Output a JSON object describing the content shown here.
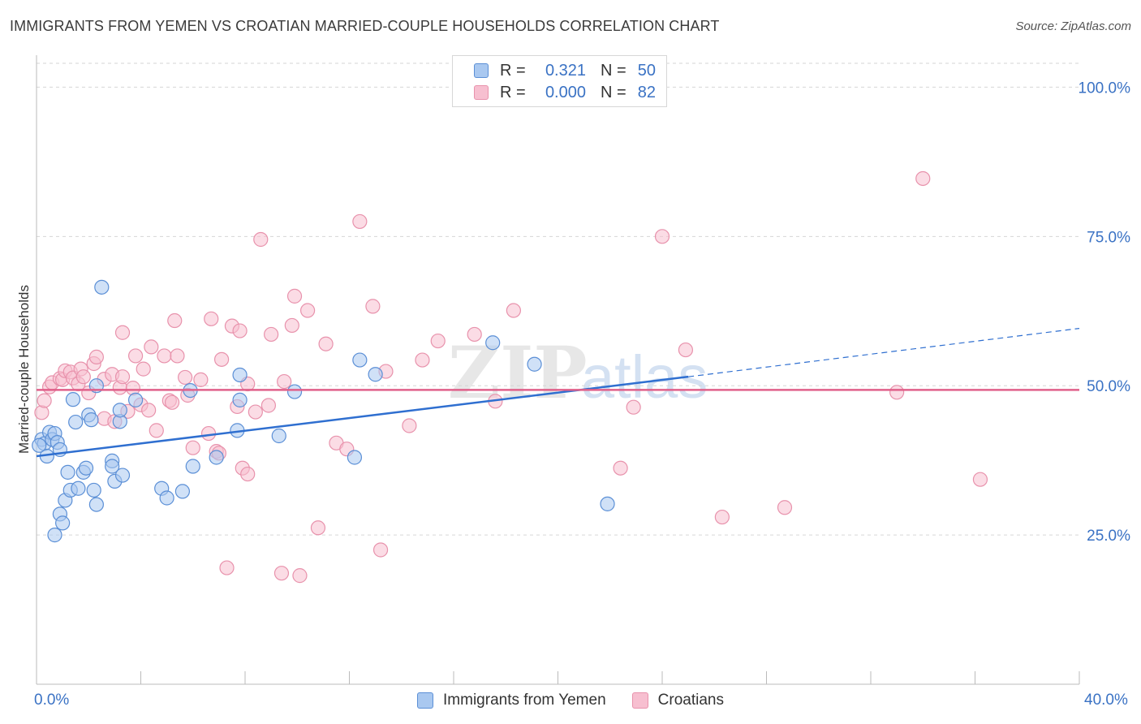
{
  "title": "IMMIGRANTS FROM YEMEN VS CROATIAN MARRIED-COUPLE HOUSEHOLDS CORRELATION CHART",
  "source": "Source: ZipAtlas.com",
  "watermark": {
    "bold": "ZIP",
    "light": "atlas"
  },
  "legend": {
    "rows": [
      {
        "r_label": "R =",
        "r_value": "0.321",
        "n_label": "N =",
        "n_value": "50"
      },
      {
        "r_label": "R =",
        "r_value": "0.000",
        "n_label": "N =",
        "n_value": "82"
      }
    ]
  },
  "colors": {
    "blue_fill": "#a9c8f0",
    "blue_stroke": "#5b8fd6",
    "blue_line": "#2f6fd0",
    "pink_fill": "#f7bfd0",
    "pink_stroke": "#e892ac",
    "pink_line": "#e0608a",
    "grid": "#d6d6d6",
    "tick_label": "#3a72c4"
  },
  "chart_data": {
    "type": "scatter",
    "title": "IMMIGRANTS FROM YEMEN VS CROATIAN MARRIED-COUPLE HOUSEHOLDS CORRELATION CHART",
    "xlabel": "",
    "ylabel": "Married-couple Households",
    "xlim": [
      0,
      40
    ],
    "ylim": [
      0,
      104
    ],
    "x_tick_labels": [
      "0.0%",
      "40.0%"
    ],
    "y_ticks": [
      25,
      50,
      75,
      100
    ],
    "y_tick_labels": [
      "25.0%",
      "50.0%",
      "75.0%",
      "100.0%"
    ],
    "grid": "horizontal dashed",
    "legend_placement": "bottom-center",
    "series": [
      {
        "name": "Immigrants from Yemen",
        "R": 0.321,
        "N": 50,
        "trend": {
          "x0": 0,
          "y0": 38.2,
          "x1": 25,
          "y1": 51.5,
          "dashed_to_x": 40,
          "dashed_y1": 59.6
        },
        "points": [
          [
            0.2,
            41.0
          ],
          [
            0.3,
            40.3
          ],
          [
            0.4,
            38.2
          ],
          [
            0.5,
            42.2
          ],
          [
            0.6,
            41.0
          ],
          [
            0.7,
            42.0
          ],
          [
            0.8,
            40.5
          ],
          [
            0.9,
            39.3
          ],
          [
            0.7,
            25.0
          ],
          [
            0.9,
            28.5
          ],
          [
            1.0,
            27.0
          ],
          [
            1.1,
            30.8
          ],
          [
            1.2,
            35.5
          ],
          [
            1.3,
            32.5
          ],
          [
            1.4,
            47.7
          ],
          [
            1.5,
            43.9
          ],
          [
            1.6,
            32.8
          ],
          [
            1.8,
            35.5
          ],
          [
            1.9,
            36.2
          ],
          [
            2.0,
            45.1
          ],
          [
            2.1,
            44.3
          ],
          [
            2.2,
            32.5
          ],
          [
            2.3,
            50.0
          ],
          [
            2.3,
            30.1
          ],
          [
            2.5,
            66.5
          ],
          [
            2.9,
            37.4
          ],
          [
            2.9,
            36.5
          ],
          [
            3.0,
            34.0
          ],
          [
            3.2,
            44.0
          ],
          [
            3.2,
            45.9
          ],
          [
            3.3,
            35.0
          ],
          [
            3.8,
            47.6
          ],
          [
            4.8,
            32.8
          ],
          [
            5.0,
            31.2
          ],
          [
            5.6,
            32.3
          ],
          [
            5.9,
            49.2
          ],
          [
            6.0,
            36.5
          ],
          [
            6.9,
            38.0
          ],
          [
            7.7,
            42.5
          ],
          [
            7.8,
            47.6
          ],
          [
            7.8,
            51.8
          ],
          [
            9.3,
            41.6
          ],
          [
            9.9,
            49.0
          ],
          [
            12.2,
            38.0
          ],
          [
            12.4,
            54.3
          ],
          [
            13.0,
            51.9
          ],
          [
            17.5,
            57.2
          ],
          [
            19.1,
            53.6
          ],
          [
            21.9,
            30.2
          ],
          [
            0.1,
            40.0
          ]
        ]
      },
      {
        "name": "Croatians",
        "R": 0.0,
        "N": 82,
        "trend": {
          "x0": 0,
          "y0": 49.3,
          "x1": 40,
          "y1": 49.3
        },
        "points": [
          [
            0.2,
            45.5
          ],
          [
            0.3,
            47.5
          ],
          [
            0.5,
            49.8
          ],
          [
            0.6,
            50.5
          ],
          [
            0.9,
            51.2
          ],
          [
            1.0,
            51.0
          ],
          [
            1.1,
            52.5
          ],
          [
            1.3,
            52.3
          ],
          [
            1.4,
            51.3
          ],
          [
            1.6,
            50.3
          ],
          [
            1.7,
            52.8
          ],
          [
            1.8,
            51.5
          ],
          [
            2.0,
            48.8
          ],
          [
            2.2,
            53.7
          ],
          [
            2.3,
            54.8
          ],
          [
            2.6,
            44.5
          ],
          [
            2.6,
            51.1
          ],
          [
            2.9,
            51.9
          ],
          [
            3.0,
            44.0
          ],
          [
            3.2,
            49.7
          ],
          [
            3.3,
            51.5
          ],
          [
            3.3,
            58.9
          ],
          [
            3.5,
            45.7
          ],
          [
            3.7,
            49.6
          ],
          [
            3.8,
            55.0
          ],
          [
            4.0,
            46.8
          ],
          [
            4.1,
            52.8
          ],
          [
            4.3,
            45.9
          ],
          [
            4.4,
            56.5
          ],
          [
            4.6,
            42.5
          ],
          [
            4.9,
            55.0
          ],
          [
            5.1,
            47.5
          ],
          [
            5.2,
            47.2
          ],
          [
            5.3,
            60.9
          ],
          [
            5.4,
            55.0
          ],
          [
            5.7,
            51.4
          ],
          [
            5.8,
            48.4
          ],
          [
            6.0,
            39.6
          ],
          [
            6.3,
            51.0
          ],
          [
            6.6,
            42.0
          ],
          [
            6.7,
            61.2
          ],
          [
            6.9,
            39.0
          ],
          [
            7.0,
            38.7
          ],
          [
            7.1,
            54.4
          ],
          [
            7.5,
            60.0
          ],
          [
            7.7,
            46.5
          ],
          [
            7.8,
            59.2
          ],
          [
            7.9,
            36.2
          ],
          [
            8.1,
            50.3
          ],
          [
            8.1,
            35.2
          ],
          [
            8.4,
            45.6
          ],
          [
            8.6,
            74.5
          ],
          [
            8.9,
            46.7
          ],
          [
            9.0,
            58.6
          ],
          [
            9.5,
            50.7
          ],
          [
            9.8,
            60.1
          ],
          [
            9.9,
            65.0
          ],
          [
            10.4,
            62.6
          ],
          [
            10.8,
            26.2
          ],
          [
            11.1,
            57.0
          ],
          [
            11.5,
            40.4
          ],
          [
            11.9,
            39.4
          ],
          [
            12.4,
            77.5
          ],
          [
            12.9,
            63.3
          ],
          [
            13.4,
            52.4
          ],
          [
            14.3,
            43.3
          ],
          [
            14.8,
            54.3
          ],
          [
            15.4,
            57.5
          ],
          [
            16.8,
            58.6
          ],
          [
            17.6,
            47.4
          ],
          [
            18.3,
            62.6
          ],
          [
            7.3,
            19.5
          ],
          [
            9.4,
            18.6
          ],
          [
            10.1,
            18.2
          ],
          [
            13.2,
            22.5
          ],
          [
            22.4,
            36.2
          ],
          [
            22.9,
            46.4
          ],
          [
            24.0,
            75.0
          ],
          [
            24.9,
            56.0
          ],
          [
            26.3,
            28.0
          ],
          [
            28.7,
            29.6
          ],
          [
            33.0,
            48.9
          ],
          [
            34.0,
            84.7
          ],
          [
            36.2,
            34.3
          ]
        ]
      }
    ]
  }
}
